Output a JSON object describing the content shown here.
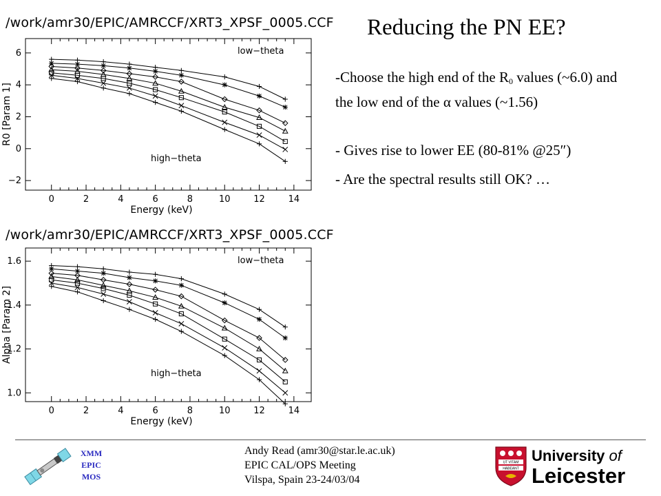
{
  "slide": {
    "title": "Reducing the PN EE?",
    "bullet1_pre": "-Choose the high end of the R",
    "bullet1_sub": "0",
    "bullet1_post": " values (~6.0) and the low end of the α values (~1.56)",
    "bullet2": "- Gives rise to lower EE (80-81% @25″)",
    "bullet3": "- Are the spectral results still OK? …"
  },
  "footer": {
    "line1": "Andy Read (amr30@star.le.ac.uk)",
    "line2": "EPIC CAL/OPS Meeting",
    "line3": "Vilspa, Spain 23-24/03/04",
    "xmm_label": [
      "XMM",
      "EPIC",
      "MOS"
    ],
    "university": {
      "word1": "University",
      "word2": "of",
      "name": "Leicester"
    },
    "shield_motto": [
      "UT VITAM",
      "HABEANT"
    ]
  },
  "chart_data": [
    {
      "type": "line",
      "title": "/work/amr30/EPIC/AMRCCF/XRT3_XPSF_0005.CCF",
      "xlabel": "Energy (keV)",
      "ylabel": "R0 [Param 1]",
      "xlim": [
        -1.5,
        15
      ],
      "ylim": [
        -2.6,
        6.9
      ],
      "xticks": [
        0,
        2,
        4,
        6,
        8,
        10,
        12,
        14
      ],
      "yticks": [
        -2,
        0,
        2,
        4,
        6
      ],
      "annotations": {
        "top": "low−theta",
        "bottom": "high−theta"
      },
      "x": [
        0,
        1.5,
        3.0,
        4.5,
        6.0,
        7.5,
        10.0,
        12.0,
        13.5
      ],
      "series": [
        {
          "marker": "+",
          "values": [
            5.6,
            5.55,
            5.45,
            5.3,
            5.1,
            4.9,
            4.5,
            3.9,
            3.1
          ]
        },
        {
          "marker": "*",
          "values": [
            5.35,
            5.3,
            5.2,
            5.05,
            4.85,
            4.6,
            4.0,
            3.3,
            2.6
          ]
        },
        {
          "marker": "diamond",
          "values": [
            5.15,
            5.05,
            4.9,
            4.7,
            4.5,
            4.2,
            3.1,
            2.4,
            1.6
          ]
        },
        {
          "marker": "triangle",
          "values": [
            4.95,
            4.85,
            4.65,
            4.4,
            4.1,
            3.6,
            2.6,
            1.95,
            1.1
          ]
        },
        {
          "marker": "square",
          "values": [
            4.75,
            4.6,
            4.4,
            4.1,
            3.7,
            3.2,
            2.3,
            1.4,
            0.45
          ]
        },
        {
          "marker": "x",
          "values": [
            4.6,
            4.4,
            4.1,
            3.8,
            3.3,
            2.7,
            1.65,
            0.85,
            -0.05
          ]
        },
        {
          "marker": "+",
          "values": [
            4.4,
            4.2,
            3.8,
            3.45,
            2.9,
            2.35,
            1.2,
            0.3,
            -0.8
          ]
        }
      ]
    },
    {
      "type": "line",
      "title": "/work/amr30/EPIC/AMRCCF/XRT3_XPSF_0005.CCF",
      "xlabel": "Energy (keV)",
      "ylabel": "Alpha [Param 2]",
      "xlim": [
        -1.5,
        15
      ],
      "ylim": [
        0.96,
        1.66
      ],
      "xticks": [
        0,
        2,
        4,
        6,
        8,
        10,
        12,
        14
      ],
      "yticks": [
        1.0,
        1.2,
        1.4,
        1.6
      ],
      "annotations": {
        "top": "low−theta",
        "bottom": "high−theta"
      },
      "x": [
        0,
        1.5,
        3.0,
        4.5,
        6.0,
        7.5,
        10.0,
        12.0,
        13.5
      ],
      "series": [
        {
          "marker": "+",
          "values": [
            1.58,
            1.575,
            1.565,
            1.55,
            1.54,
            1.52,
            1.45,
            1.38,
            1.3
          ]
        },
        {
          "marker": "*",
          "values": [
            1.565,
            1.555,
            1.545,
            1.525,
            1.51,
            1.49,
            1.41,
            1.335,
            1.25
          ]
        },
        {
          "marker": "diamond",
          "values": [
            1.545,
            1.535,
            1.515,
            1.495,
            1.47,
            1.44,
            1.33,
            1.25,
            1.15
          ]
        },
        {
          "marker": "triangle",
          "values": [
            1.53,
            1.515,
            1.49,
            1.465,
            1.435,
            1.395,
            1.295,
            1.2,
            1.1
          ]
        },
        {
          "marker": "square",
          "values": [
            1.515,
            1.5,
            1.475,
            1.445,
            1.405,
            1.36,
            1.245,
            1.15,
            1.05
          ]
        },
        {
          "marker": "x",
          "values": [
            1.5,
            1.48,
            1.45,
            1.415,
            1.365,
            1.315,
            1.205,
            1.1,
            1.0
          ]
        },
        {
          "marker": "+",
          "values": [
            1.485,
            1.46,
            1.42,
            1.38,
            1.335,
            1.28,
            1.17,
            1.06,
            0.95
          ]
        }
      ]
    }
  ]
}
